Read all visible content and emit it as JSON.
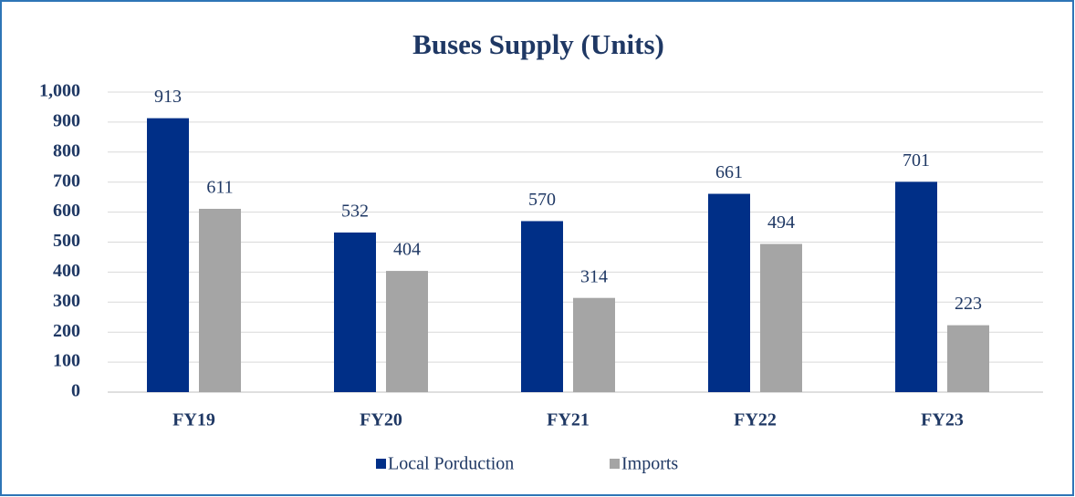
{
  "chart_data": {
    "type": "bar",
    "title": "Buses Supply (Units)",
    "categories": [
      "FY19",
      "FY20",
      "FY21",
      "FY22",
      "FY23"
    ],
    "series": [
      {
        "name": "Local Porduction",
        "color": "#002f87",
        "values": [
          913,
          532,
          570,
          661,
          701
        ]
      },
      {
        "name": "Imports",
        "color": "#a5a5a5",
        "values": [
          611,
          404,
          314,
          494,
          223
        ]
      }
    ],
    "ylim": [
      0,
      1000
    ],
    "yticks": [
      0,
      100,
      200,
      300,
      400,
      500,
      600,
      700,
      800,
      900,
      {
        "value": 1000,
        "label": "1,000"
      }
    ],
    "grid": true,
    "legend": "bottom"
  }
}
